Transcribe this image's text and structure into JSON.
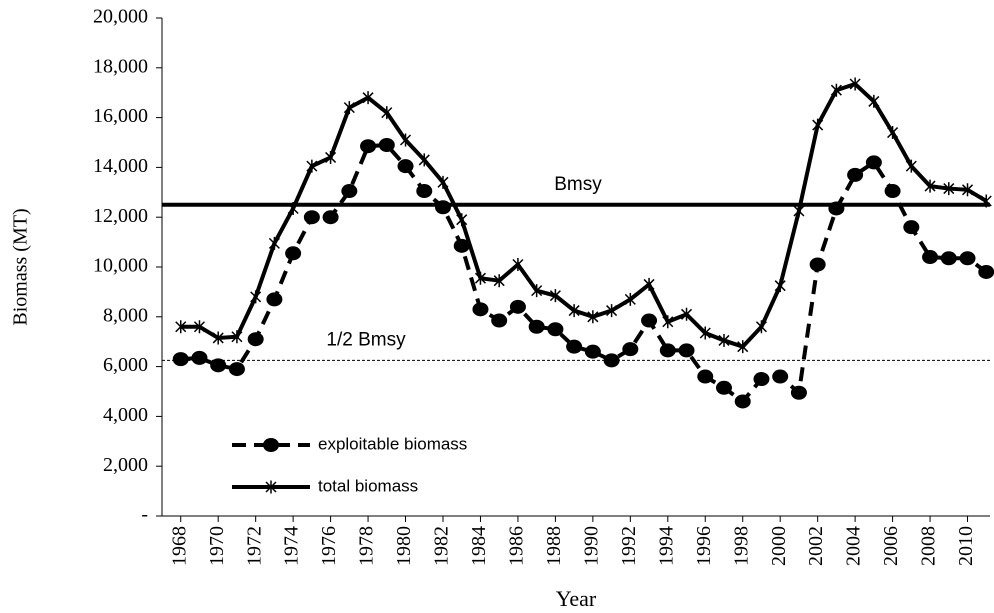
{
  "chart_data": {
    "type": "line",
    "y_label": "Biomass (MT)",
    "x_label": "Year",
    "x": [
      1968,
      1969,
      1970,
      1971,
      1972,
      1973,
      1974,
      1975,
      1976,
      1977,
      1978,
      1979,
      1980,
      1981,
      1982,
      1983,
      1984,
      1985,
      1986,
      1987,
      1988,
      1989,
      1990,
      1991,
      1992,
      1993,
      1994,
      1995,
      1996,
      1997,
      1998,
      1999,
      2000,
      2001,
      2002,
      2003,
      2004,
      2005,
      2006,
      2007,
      2008,
      2009,
      2010,
      2011
    ],
    "series": [
      {
        "name": "exploitable biomass",
        "color": "#000000",
        "dash": true,
        "marker": "circle",
        "values": [
          6300,
          6350,
          6050,
          5900,
          7100,
          8700,
          10550,
          12000,
          12000,
          13050,
          14850,
          14900,
          14050,
          13050,
          12400,
          10850,
          8300,
          7850,
          8400,
          7600,
          7500,
          6800,
          6600,
          6250,
          6700,
          7850,
          6650,
          6650,
          5600,
          5150,
          4600,
          5500,
          5600,
          4950,
          10100,
          12350,
          13700,
          14200,
          13050,
          11600,
          10400,
          10350,
          10350,
          9800
        ]
      },
      {
        "name": "total biomass",
        "color": "#000000",
        "dash": false,
        "marker": "star",
        "values": [
          7600,
          7600,
          7150,
          7200,
          8800,
          10950,
          12350,
          14050,
          14400,
          16400,
          16800,
          16200,
          15100,
          14300,
          13400,
          11900,
          9550,
          9450,
          10100,
          9050,
          8850,
          8250,
          8000,
          8250,
          8700,
          9300,
          7800,
          8100,
          7350,
          7050,
          6800,
          7600,
          9250,
          12250,
          15700,
          17100,
          17350,
          16650,
          15400,
          14050,
          13250,
          13150,
          13100,
          12650
        ]
      }
    ],
    "reference_lines": [
      {
        "label": "Bmsy",
        "value": 12500,
        "dash": false
      },
      {
        "label": "1/2 Bmsy",
        "value": 6250,
        "dash": true
      }
    ],
    "xlim": [
      1967,
      2011.2
    ],
    "xticks": [
      1968,
      1970,
      1972,
      1974,
      1976,
      1978,
      1980,
      1982,
      1984,
      1986,
      1988,
      1990,
      1992,
      1994,
      1996,
      1998,
      2000,
      2002,
      2004,
      2006,
      2008,
      2010
    ],
    "ylim": [
      0,
      20000
    ],
    "yticks": [
      {
        "value": 0,
        "label": "-"
      },
      {
        "value": 2000,
        "label": "2,000"
      },
      {
        "value": 4000,
        "label": "4,000"
      },
      {
        "value": 6000,
        "label": "6,000"
      },
      {
        "value": 8000,
        "label": "8,000"
      },
      {
        "value": 10000,
        "label": "10,000"
      },
      {
        "value": 12000,
        "label": "12,000"
      },
      {
        "value": 14000,
        "label": "14,000"
      },
      {
        "value": 16000,
        "label": "16,000"
      },
      {
        "value": 18000,
        "label": "18,000"
      },
      {
        "value": 20000,
        "label": "20,000"
      }
    ],
    "legend": "lower-left"
  }
}
